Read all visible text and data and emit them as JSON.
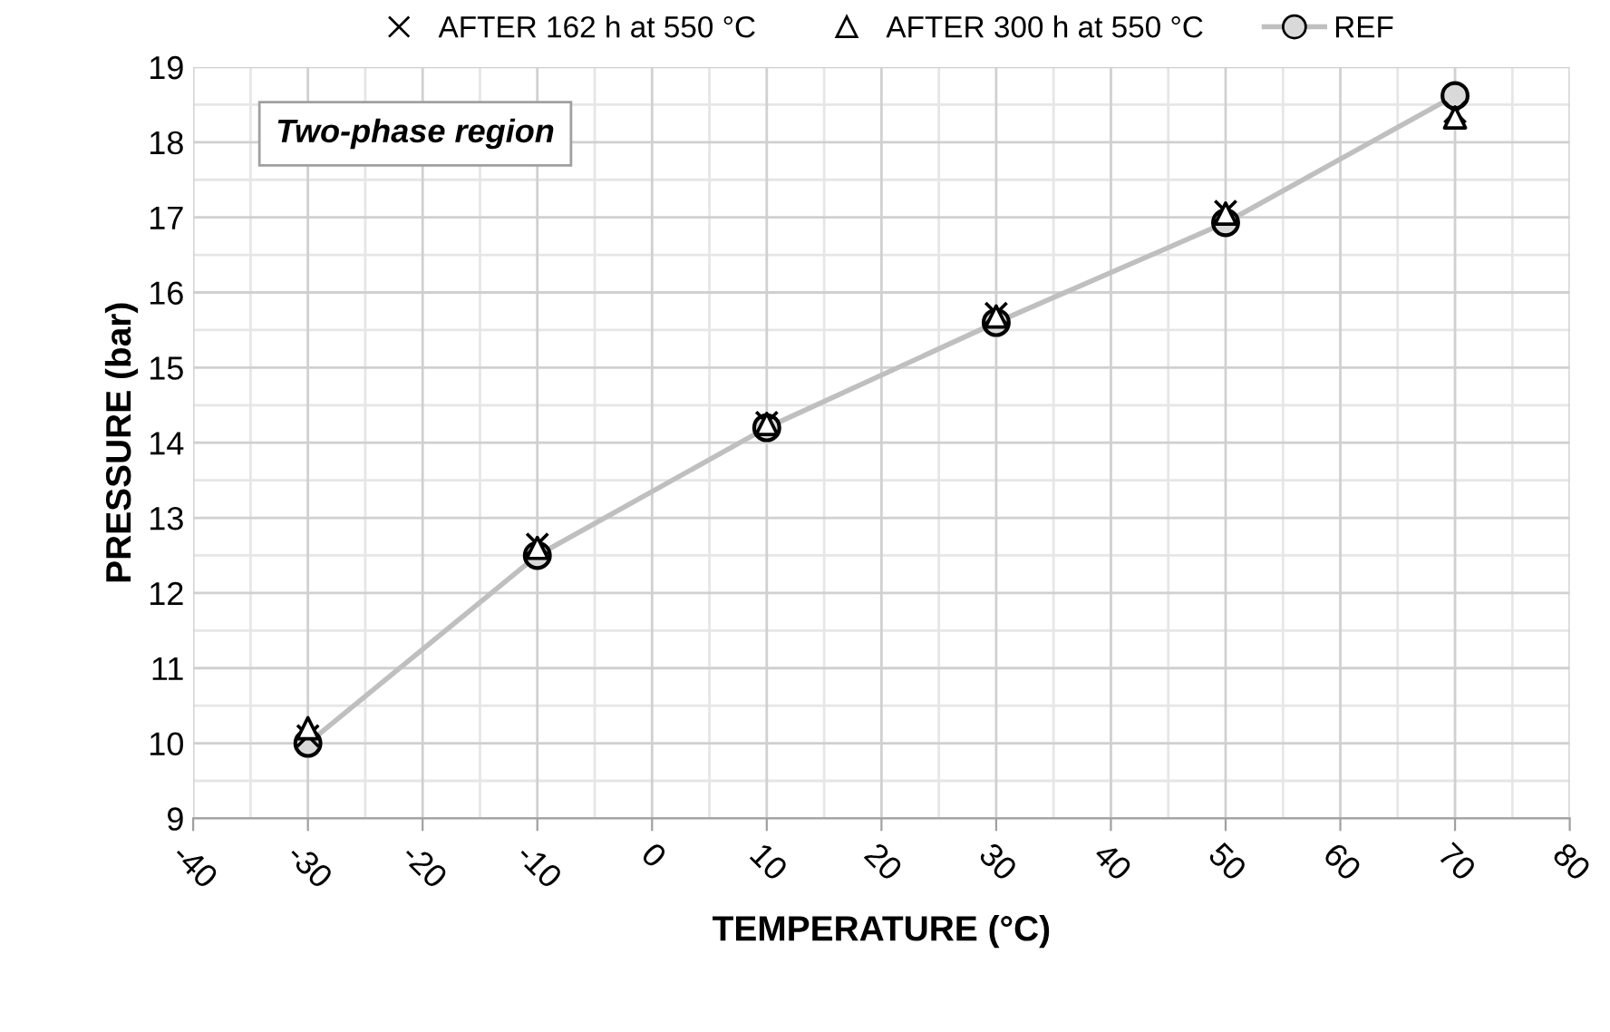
{
  "chart_data": {
    "type": "line",
    "xlabel": "TEMPERATURE (°C)",
    "ylabel": "PRESSURE (bar)",
    "x": [
      -30,
      -10,
      10,
      30,
      50,
      70
    ],
    "series": [
      {
        "name": "AFTER 162 h at 550 °C",
        "type": "scatter",
        "marker": "cross",
        "color": "#000000",
        "values": [
          10.1,
          12.65,
          14.27,
          15.72,
          17.08,
          18.4
        ]
      },
      {
        "name": "AFTER 300 h at 550 °C",
        "type": "scatter",
        "marker": "triangle",
        "color": "#000000",
        "values": [
          10.2,
          12.6,
          14.25,
          15.68,
          17.05,
          18.33
        ]
      },
      {
        "name": "REF",
        "marker": "circle",
        "color": "#bfbfbf",
        "values": [
          10.0,
          12.5,
          14.2,
          15.6,
          16.93,
          18.62
        ]
      }
    ],
    "xlim": [
      -40,
      80
    ],
    "xticks": [
      -40,
      -30,
      -20,
      -10,
      0,
      10,
      20,
      30,
      40,
      50,
      60,
      70,
      80
    ],
    "ylim": [
      9,
      19
    ],
    "yticks": [
      9,
      10,
      11,
      12,
      13,
      14,
      15,
      16,
      17,
      18,
      19
    ],
    "grid": true,
    "legend": "top",
    "annotations": [
      "Two-phase region"
    ]
  }
}
